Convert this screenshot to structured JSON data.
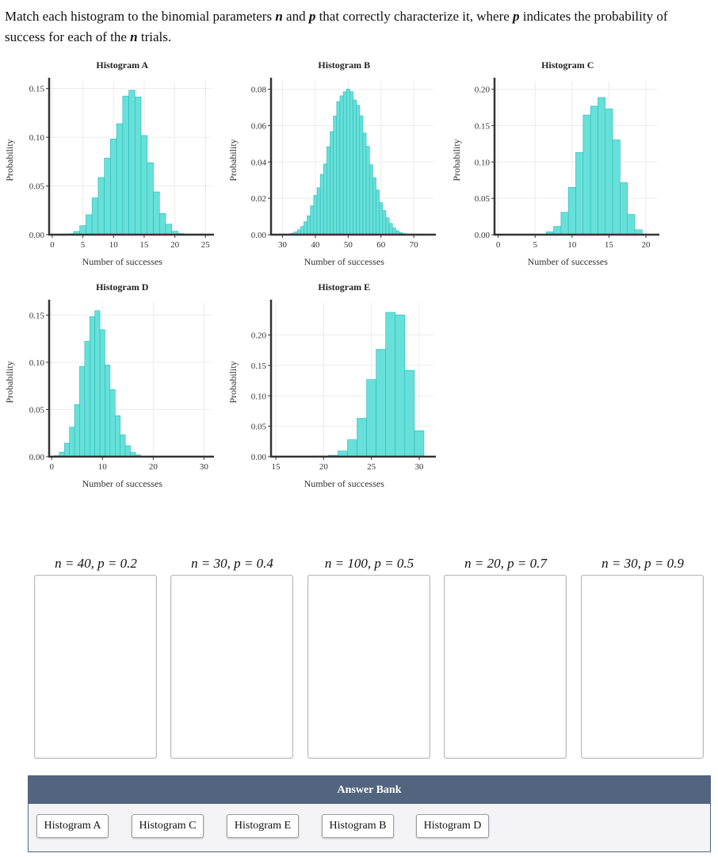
{
  "question": {
    "part1": "Match each histogram to the binomial parameters ",
    "n": "n",
    "part2": " and ",
    "p": "p",
    "part3": " that correctly characterize it, where ",
    "p2": "p",
    "part4": " indicates the probability of success for each of the ",
    "n2": "n",
    "part5": " trials."
  },
  "chart_data": [
    {
      "type": "bar",
      "title": "Histogram A",
      "xlabel": "Number of successes",
      "ylabel": "Probability",
      "x": [
        2,
        3,
        4,
        5,
        6,
        7,
        8,
        9,
        10,
        11,
        12,
        13,
        14,
        15,
        16,
        17,
        18,
        19,
        20,
        21,
        22,
        23,
        24
      ],
      "values": [
        0.0002,
        0.0009,
        0.0033,
        0.0092,
        0.0205,
        0.0378,
        0.0587,
        0.0786,
        0.0983,
        0.1139,
        0.1423,
        0.1483,
        0.1414,
        0.1018,
        0.0738,
        0.0439,
        0.0217,
        0.0108,
        0.0036,
        0.0012,
        0.0003,
        0.0001,
        0.0
      ],
      "xlim": [
        -0.5,
        26
      ],
      "ylim": [
        0,
        0.153
      ],
      "xticks": [
        0,
        5,
        10,
        15,
        20,
        25
      ],
      "yticks": [
        0,
        0.05,
        0.1,
        0.15
      ],
      "yticklabels": [
        "0.00",
        "0.05",
        "0.10",
        "0.15"
      ],
      "grid": true
    },
    {
      "type": "bar",
      "title": "Histogram B",
      "xlabel": "Number of successes",
      "ylabel": "Probability",
      "x": [
        29,
        30,
        31,
        32,
        33,
        34,
        35,
        36,
        37,
        38,
        39,
        40,
        41,
        42,
        43,
        44,
        45,
        46,
        47,
        48,
        49,
        50,
        51,
        52,
        53,
        54,
        55,
        56,
        57,
        58,
        59,
        60,
        61,
        62,
        63,
        64,
        65,
        66,
        67,
        68,
        69,
        70,
        71,
        72
      ],
      "values": [
        0.0001,
        0.0001,
        0.0002,
        0.0004,
        0.0008,
        0.0015,
        0.0027,
        0.0045,
        0.0071,
        0.0104,
        0.0159,
        0.0216,
        0.0258,
        0.0332,
        0.0389,
        0.0484,
        0.0567,
        0.0653,
        0.0732,
        0.0764,
        0.0786,
        0.0801,
        0.0787,
        0.0741,
        0.0712,
        0.0654,
        0.0559,
        0.0486,
        0.0385,
        0.0313,
        0.0246,
        0.0176,
        0.0133,
        0.0093,
        0.0062,
        0.0037,
        0.0022,
        0.0012,
        0.0006,
        0.0003,
        0.0002,
        0.0001,
        0.0001,
        0.0
      ],
      "xlim": [
        26.5,
        76
      ],
      "ylim": [
        0,
        0.082
      ],
      "xticks": [
        30,
        40,
        50,
        60,
        70
      ],
      "yticks": [
        0,
        0.02,
        0.04,
        0.06,
        0.08
      ],
      "yticklabels": [
        "0.00",
        "0.02",
        "0.04",
        "0.06",
        "0.08"
      ],
      "grid": true
    },
    {
      "type": "bar",
      "title": "Histogram C",
      "xlabel": "Number of successes",
      "ylabel": "Probability",
      "x": [
        7,
        8,
        9,
        10,
        11,
        12,
        13,
        14,
        15,
        16,
        17
      ],
      "values": [
        0.0039,
        0.0114,
        0.0308,
        0.0651,
        0.1132,
        0.1646,
        0.1768,
        0.1887,
        0.1729,
        0.1304,
        0.0716
      ],
      "extra_x": [
        18,
        19,
        20
      ],
      "extra_values": [
        0.0278,
        0.0068,
        0.0008
      ],
      "xlim": [
        -0.5,
        21.5
      ],
      "ylim": [
        0,
        0.205
      ],
      "xticks": [
        0,
        5,
        10,
        15,
        20
      ],
      "yticks": [
        0,
        0.05,
        0.1,
        0.15,
        0.2
      ],
      "yticklabels": [
        "0.00",
        "0.05",
        "0.10",
        "0.15",
        "0.20"
      ],
      "grid": true
    },
    {
      "type": "bar",
      "title": "Histogram D",
      "xlabel": "Number of successes",
      "ylabel": "Probability",
      "x": [
        1,
        2,
        3,
        4,
        5,
        6,
        7,
        8,
        9,
        10,
        11,
        12,
        13,
        14,
        15,
        16,
        17
      ],
      "values": [
        0.0011,
        0.0047,
        0.0143,
        0.0313,
        0.0552,
        0.0957,
        0.1223,
        0.1484,
        0.1548,
        0.1346,
        0.0971,
        0.0712,
        0.0435,
        0.0231,
        0.0117,
        0.0046,
        0.0018
      ],
      "xlim": [
        -0.5,
        31.5
      ],
      "ylim": [
        0,
        0.158
      ],
      "xticks": [
        0,
        10,
        20,
        30
      ],
      "yticks": [
        0,
        0.05,
        0.1,
        0.15
      ],
      "yticklabels": [
        "0.00",
        "0.05",
        "0.10",
        "0.15"
      ],
      "grid": true
    },
    {
      "type": "bar",
      "title": "Histogram E",
      "xlabel": "Number of successes",
      "ylabel": "Probability",
      "x": [
        19,
        20,
        21,
        22,
        23,
        24,
        25,
        26,
        27,
        28,
        29,
        30
      ],
      "values": [
        0.0002,
        0.0011,
        0.0023,
        0.0093,
        0.0278,
        0.0631,
        0.1268,
        0.1765,
        0.2372,
        0.2331,
        0.1419,
        0.0426
      ],
      "xlim": [
        14.5,
        31.5
      ],
      "ylim": [
        0,
        0.245
      ],
      "xticks": [
        15,
        20,
        25,
        30
      ],
      "yticks": [
        0,
        0.05,
        0.1,
        0.15,
        0.2
      ],
      "yticklabels": [
        "0.00",
        "0.05",
        "0.10",
        "0.15",
        "0.20"
      ],
      "grid": true
    }
  ],
  "targets": [
    {
      "label": "n = 40, p = 0.2"
    },
    {
      "label": "n = 30, p = 0.4"
    },
    {
      "label": "n = 100, p = 0.5"
    },
    {
      "label": "n = 20, p = 0.7"
    },
    {
      "label": "n = 30, p = 0.9"
    }
  ],
  "answer_bank": {
    "title": "Answer Bank",
    "items": [
      "Histogram A",
      "Histogram C",
      "Histogram E",
      "Histogram B",
      "Histogram D"
    ]
  },
  "colors": {
    "bar_fill": "#66e0d8",
    "bar_stroke": "#2cb8bd",
    "bank_header": "#52647e"
  }
}
